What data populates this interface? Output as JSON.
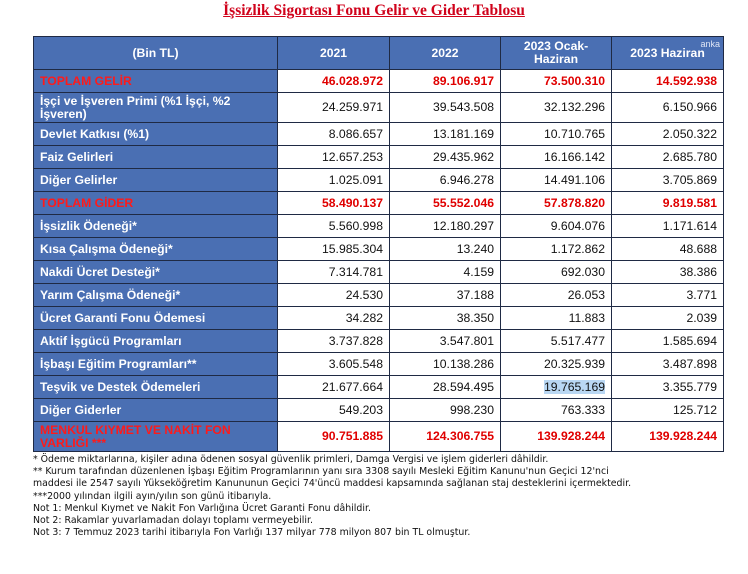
{
  "title": "İşsizlik Sigortası Fonu Gelir ve Gider Tablosu",
  "watermark": "anka",
  "headers": [
    "(Bin TL)",
    "2021",
    "2022",
    "2023 Ocak-Haziran",
    "2023 Haziran"
  ],
  "rows": [
    {
      "label": "TOPLAM GELİR",
      "values": [
        "46.028.972",
        "89.106.917",
        "73.500.310",
        "14.592.938"
      ],
      "total": true
    },
    {
      "label": "İşçi ve İşveren Primi (%1 İşçi, %2 İşveren)",
      "values": [
        "24.259.971",
        "39.543.508",
        "32.132.296",
        "6.150.966"
      ]
    },
    {
      "label": "Devlet Katkısı (%1)",
      "values": [
        "8.086.657",
        "13.181.169",
        "10.710.765",
        "2.050.322"
      ]
    },
    {
      "label": "Faiz Gelirleri",
      "values": [
        "12.657.253",
        "29.435.962",
        "16.166.142",
        "2.685.780"
      ]
    },
    {
      "label": "Diğer Gelirler",
      "values": [
        "1.025.091",
        "6.946.278",
        "14.491.106",
        "3.705.869"
      ]
    },
    {
      "label": "TOPLAM GİDER",
      "values": [
        "58.490.137",
        "55.552.046",
        "57.878.820",
        "9.819.581"
      ],
      "total": true
    },
    {
      "label": "İşsizlik Ödeneği*",
      "values": [
        "5.560.998",
        "12.180.297",
        "9.604.076",
        "1.171.614"
      ]
    },
    {
      "label": "Kısa Çalışma Ödeneği*",
      "values": [
        "15.985.304",
        "13.240",
        "1.172.862",
        "48.688"
      ]
    },
    {
      "label": "Nakdi Ücret Desteği*",
      "values": [
        "7.314.781",
        "4.159",
        "692.030",
        "38.386"
      ]
    },
    {
      "label": "Yarım Çalışma Ödeneği*",
      "values": [
        "24.530",
        "37.188",
        "26.053",
        "3.771"
      ]
    },
    {
      "label": "Ücret Garanti Fonu Ödemesi",
      "values": [
        "34.282",
        "38.350",
        "11.883",
        "2.039"
      ]
    },
    {
      "label": "Aktif İşgücü Programları",
      "values": [
        "3.737.828",
        "3.547.801",
        "5.517.477",
        "1.585.694"
      ]
    },
    {
      "label": "İşbaşı Eğitim Programları**",
      "values": [
        "3.605.548",
        "10.138.286",
        "20.325.939",
        "3.487.898"
      ]
    },
    {
      "label": "Teşvik ve Destek Ödemeleri",
      "values": [
        "21.677.664",
        "28.594.495",
        "19.765.169",
        "3.355.779"
      ]
    },
    {
      "label": "Diğer Giderler",
      "values": [
        "549.203",
        "998.230",
        "763.333",
        "125.712"
      ]
    },
    {
      "label": "MENKUL KIYMET VE NAKİT FON VARLIĞI ***",
      "values": [
        "90.751.885",
        "124.306.755",
        "139.928.244",
        "139.928.244"
      ],
      "total": true
    }
  ],
  "notes": [
    "* Ödeme miktarlarına, kişiler adına ödenen sosyal güvenlik primleri, Damga Vergisi ve işlem giderleri dâhildir.",
    "** Kurum tarafından düzenlenen İşbaşı Eğitim Programlarının yanı sıra 3308 sayılı Mesleki Eğitim Kanunu'nun Geçici 12'nci",
    "maddesi ile 2547 sayılı Yükseköğretim Kanununun Geçici 74'üncü maddesi kapsamında sağlanan staj desteklerini içermektedir.",
    "***2000 yılından ilgili ayın/yılın son günü itibarıyla.",
    "Not 1: Menkul Kıymet ve Nakit Fon Varlığına Ücret Garanti Fonu dâhildir.",
    "Not 2: Rakamlar yuvarlamadan dolayı toplamı vermeyebilir.",
    "Not 3: 7 Temmuz 2023 tarihi itibarıyla Fon Varlığı 137 milyar 778 milyon 807 bin TL olmuştur."
  ]
}
